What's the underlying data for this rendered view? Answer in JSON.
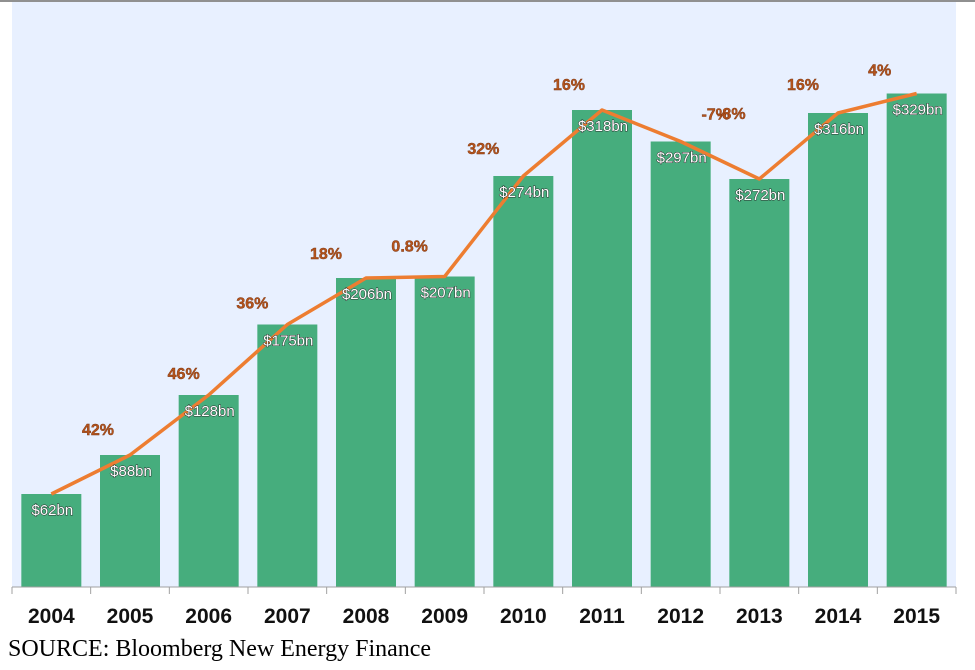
{
  "colors": {
    "bar": "#46ad7d",
    "line": "#ed7d31",
    "growth_label": "#b5541c",
    "value_label": "#ffffff",
    "value_label_stroke": "#2a2a2a",
    "plot_background": "#e8f0ff"
  },
  "chart_data": {
    "type": "bar",
    "categories": [
      "2004",
      "2005",
      "2006",
      "2007",
      "2008",
      "2009",
      "2010",
      "2011",
      "2012",
      "2013",
      "2014",
      "2015"
    ],
    "values": [
      62,
      88,
      128,
      175,
      206,
      207,
      274,
      318,
      297,
      272,
      316,
      329
    ],
    "value_labels": [
      "$62bn",
      "$88bn",
      "$128bn",
      "$175bn",
      "$206bn",
      "$207bn",
      "$274bn",
      "$318bn",
      "$297bn",
      "$272bn",
      "$316bn",
      "$329bn"
    ],
    "growth_labels": [
      "",
      "42%",
      "46%",
      "36%",
      "18%",
      "0.8%",
      "32%",
      "16%",
      "-7%",
      "-8%",
      "16%",
      "4%"
    ],
    "overlay": {
      "type": "line",
      "values": [
        62,
        88,
        128,
        175,
        206,
        207,
        274,
        318,
        297,
        272,
        316,
        329
      ]
    },
    "ylim": [
      0,
      350
    ],
    "grid": false,
    "legend": "none"
  },
  "footer": {
    "source": "SOURCE: Bloomberg New Energy Finance"
  }
}
